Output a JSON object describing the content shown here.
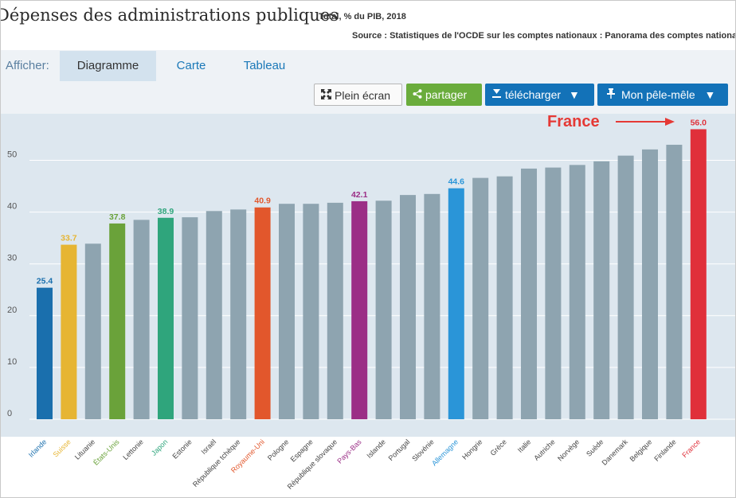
{
  "header": {
    "title": "Dépenses des administrations publiques",
    "subtitle": "Total, % du PIB, 2018",
    "source": "Source : Statistiques de l'OCDE sur les comptes nationaux : Panorama des comptes nationaux"
  },
  "toolbar": {
    "afficher_label": "Afficher:",
    "tabs": [
      {
        "label": "Diagramme"
      },
      {
        "label": "Carte"
      },
      {
        "label": "Tableau"
      }
    ],
    "fullscreen_label": "Plein écran",
    "share_label": "partager",
    "download_label": "télécharger",
    "mon_label": "Mon pêle-mêle"
  },
  "annotation": {
    "label": "France",
    "color": "#e53935"
  },
  "chart_data": {
    "type": "bar",
    "categories": [
      "Irlande",
      "Suisse",
      "Lituanie",
      "États-Unis",
      "Lettonie",
      "Japon",
      "Estonie",
      "Israël",
      "République tchèque",
      "Royaume-Uni",
      "Pologne",
      "Espagne",
      "République slovaque",
      "Pays-Bas",
      "Islande",
      "Portugal",
      "Slovénie",
      "Allemagne",
      "Hongrie",
      "Grèce",
      "Italie",
      "Autriche",
      "Norvège",
      "Suède",
      "Danemark",
      "Belgique",
      "Finlande",
      "France"
    ],
    "values": [
      25.4,
      33.7,
      33.9,
      37.8,
      38.5,
      38.9,
      39.0,
      40.2,
      40.5,
      40.9,
      41.6,
      41.6,
      41.8,
      42.1,
      42.2,
      43.3,
      43.5,
      44.6,
      46.6,
      46.9,
      48.4,
      48.6,
      49.1,
      49.8,
      50.9,
      52.1,
      53.0,
      56.0
    ],
    "colors": [
      "#1a6fad",
      "#e6b533",
      "#8ea4b0",
      "#6aa23a",
      "#8ea4b0",
      "#2fa57c",
      "#8ea4b0",
      "#8ea4b0",
      "#8ea4b0",
      "#e2572c",
      "#8ea4b0",
      "#8ea4b0",
      "#8ea4b0",
      "#9b2e86",
      "#8ea4b0",
      "#8ea4b0",
      "#8ea4b0",
      "#2a95d8",
      "#8ea4b0",
      "#8ea4b0",
      "#8ea4b0",
      "#8ea4b0",
      "#8ea4b0",
      "#8ea4b0",
      "#8ea4b0",
      "#8ea4b0",
      "#8ea4b0",
      "#e0303a"
    ],
    "label_colors": [
      "#1a6fad",
      "#e6b533",
      "#444444",
      "#6aa23a",
      "#444444",
      "#2fa57c",
      "#444444",
      "#444444",
      "#444444",
      "#e2572c",
      "#444444",
      "#444444",
      "#444444",
      "#9b2e86",
      "#444444",
      "#444444",
      "#444444",
      "#2a95d8",
      "#444444",
      "#444444",
      "#444444",
      "#444444",
      "#444444",
      "#444444",
      "#444444",
      "#444444",
      "#444444",
      "#e0303a"
    ],
    "data_labels": [
      "25.4",
      "33.7",
      "",
      "37.8",
      "",
      "38.9",
      "",
      "",
      "",
      "40.9",
      "",
      "",
      "",
      "42.1",
      "",
      "",
      "",
      "44.6",
      "",
      "",
      "",
      "",
      "",
      "",
      "",
      "",
      "",
      "56.0"
    ],
    "yticks": [
      "0",
      "10",
      "20",
      "30",
      "40",
      "50"
    ],
    "ylim": [
      0,
      57
    ],
    "grid": true,
    "background": "#dde7ef"
  }
}
